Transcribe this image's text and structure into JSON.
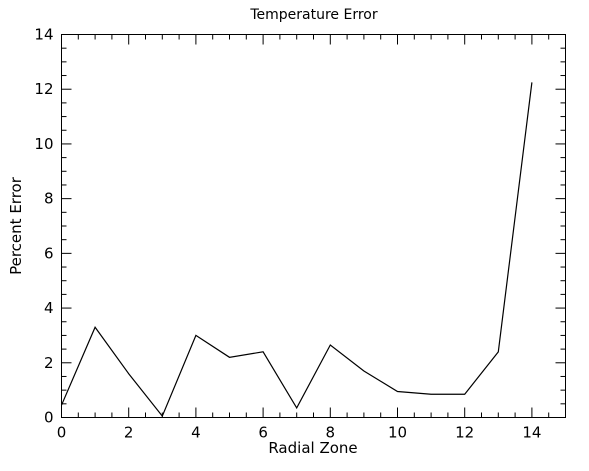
{
  "chart_data": {
    "type": "line",
    "title": "Temperature Error",
    "xlabel": "Radial Zone",
    "ylabel": "Percent Error",
    "xlim": [
      0,
      15
    ],
    "ylim": [
      0,
      14
    ],
    "xticks": [
      0,
      2,
      4,
      6,
      8,
      10,
      12,
      14
    ],
    "yticks": [
      0,
      2,
      4,
      6,
      8,
      10,
      12,
      14
    ],
    "grid": false,
    "legend": "none",
    "series": [
      {
        "x": [
          0,
          1,
          2,
          3,
          4,
          5,
          6,
          7,
          8,
          9,
          10,
          11,
          12,
          13,
          14
        ],
        "values": [
          0.45,
          3.3,
          1.6,
          0.05,
          3.0,
          2.2,
          2.4,
          0.35,
          2.65,
          1.7,
          0.95,
          0.85,
          0.85,
          2.4,
          12.25
        ]
      }
    ]
  }
}
